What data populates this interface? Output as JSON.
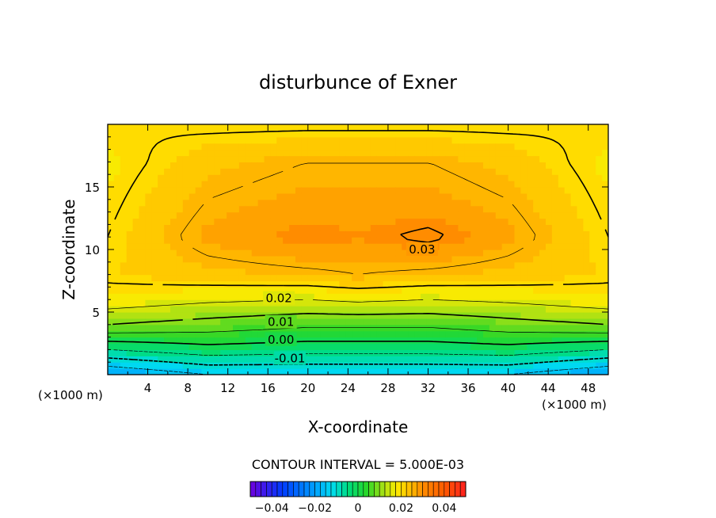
{
  "chart_data": {
    "type": "heatmap",
    "title": "disturbunce of Exner",
    "xlabel": "X-coordinate",
    "ylabel": "Z-coordinate",
    "x_unit_left": "(×1000 m)",
    "x_unit_right": "(×1000 m)",
    "xlim": [
      0,
      50
    ],
    "ylim": [
      0,
      20
    ],
    "x_ticks": [
      "4",
      "8",
      "12",
      "16",
      "20",
      "24",
      "28",
      "32",
      "36",
      "40",
      "44",
      "48"
    ],
    "y_ticks": [
      "5",
      "10",
      "15"
    ],
    "contour_interval_text": "CONTOUR INTERVAL = 5.000E-03",
    "contour_labels": [
      {
        "text": "0.03",
        "x": 31.4,
        "z": 10.0
      },
      {
        "text": "0.02",
        "x": 17.1,
        "z": 6.1
      },
      {
        "text": "0.01",
        "x": 17.3,
        "z": 4.2
      },
      {
        "text": "0.00",
        "x": 17.3,
        "z": 2.8
      },
      {
        "text": "-0.01",
        "x": 18.2,
        "z": 1.3
      }
    ],
    "colorbar": {
      "range": [
        -0.05,
        0.05
      ],
      "tick_values": [
        -0.04,
        -0.02,
        0,
        0.02,
        0.04
      ],
      "tick_labels": [
        "−0.04",
        "−0.02",
        "0",
        "0.02",
        "0.04"
      ]
    },
    "field_samples": {
      "description_values": "disturbance values at (x, z) grid; x in km (×1000 m), z in km",
      "x": [
        0,
        10,
        20,
        25,
        32,
        40,
        50
      ],
      "z": [
        0,
        2,
        4,
        6,
        8,
        11,
        14,
        17,
        20
      ],
      "values": [
        [
          -0.02,
          -0.015,
          -0.015,
          -0.015,
          -0.015,
          -0.015,
          -0.02
        ],
        [
          -0.005,
          -0.002,
          -0.003,
          -0.003,
          -0.003,
          -0.002,
          -0.005
        ],
        [
          0.01,
          0.008,
          0.006,
          0.006,
          0.006,
          0.008,
          0.01
        ],
        [
          0.018,
          0.016,
          0.015,
          0.016,
          0.015,
          0.016,
          0.018
        ],
        [
          0.021,
          0.023,
          0.024,
          0.025,
          0.024,
          0.023,
          0.021
        ],
        [
          0.02,
          0.027,
          0.03,
          0.029,
          0.031,
          0.027,
          0.02
        ],
        [
          0.019,
          0.025,
          0.027,
          0.027,
          0.027,
          0.025,
          0.019
        ],
        [
          0.018,
          0.023,
          0.025,
          0.025,
          0.025,
          0.023,
          0.018
        ],
        [
          0.02,
          0.019,
          0.019,
          0.019,
          0.019,
          0.019,
          0.02
        ]
      ]
    }
  }
}
